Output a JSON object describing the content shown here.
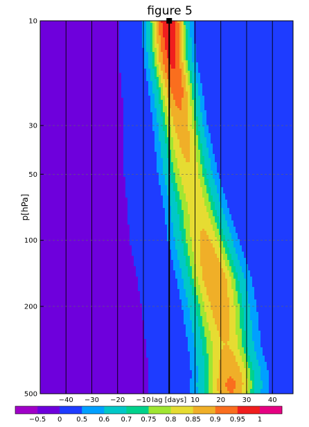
{
  "chart_data": {
    "type": "heatmap",
    "title": "figure 5",
    "xlabel": "lag [days]",
    "ylabel": "p[hPa]",
    "xlim": [
      -50,
      48
    ],
    "ylim": [
      10,
      500
    ],
    "y_scale": "log",
    "x_ticks": [
      {
        "value": -40,
        "label": "−40"
      },
      {
        "value": -30,
        "label": "−30"
      },
      {
        "value": -20,
        "label": "−20"
      },
      {
        "value": -10,
        "label": "−10"
      },
      {
        "value": 10,
        "label": "10"
      },
      {
        "value": 20,
        "label": "20"
      },
      {
        "value": 30,
        "label": "30"
      },
      {
        "value": 40,
        "label": "40"
      }
    ],
    "x_gridlines": [
      -40,
      -30,
      -20,
      -10,
      0,
      10,
      20,
      30,
      40
    ],
    "y_ticks": [
      {
        "value": 10,
        "label": "10"
      },
      {
        "value": 30,
        "label": "30"
      },
      {
        "value": 50,
        "label": "50"
      },
      {
        "value": 100,
        "label": "100"
      },
      {
        "value": 200,
        "label": "200"
      },
      {
        "value": 500,
        "label": "500"
      }
    ],
    "y_gridlines": [
      30,
      50,
      100,
      200
    ],
    "marker": {
      "x": 0,
      "y": 10
    },
    "colorbar": {
      "levels": [
        "−0.5",
        "0",
        "0.5",
        "0.6",
        "0.7",
        "0.75",
        "0.8",
        "0.85",
        "0.9",
        "0.95",
        "1"
      ],
      "colors": [
        "#a000c8",
        "#6e00dc",
        "#1e3cff",
        "#00a0ff",
        "#00c8c8",
        "#00d28c",
        "#a0e632",
        "#e6dc32",
        "#f0af28",
        "#fa6e1e",
        "#f01e1e",
        "#e60082"
      ]
    },
    "max_ridge": [
      {
        "p": 10,
        "lag": 0
      },
      {
        "p": 15,
        "lag": 1
      },
      {
        "p": 20,
        "lag": 3
      },
      {
        "p": 30,
        "lag": 5
      },
      {
        "p": 50,
        "lag": 8
      },
      {
        "p": 70,
        "lag": 11
      },
      {
        "p": 100,
        "lag": 14
      },
      {
        "p": 150,
        "lag": 18
      },
      {
        "p": 200,
        "lag": 20
      },
      {
        "p": 300,
        "lag": 22
      },
      {
        "p": 400,
        "lag": 24
      },
      {
        "p": 500,
        "lag": 24
      }
    ],
    "ridge_width": [
      {
        "p": 10,
        "width": 6
      },
      {
        "p": 30,
        "width": 7
      },
      {
        "p": 50,
        "width": 8
      },
      {
        "p": 100,
        "width": 9
      },
      {
        "p": 200,
        "width": 9
      },
      {
        "p": 500,
        "width": 9
      }
    ],
    "peak_values": [
      {
        "p": 10,
        "value": 1.0
      },
      {
        "p": 15,
        "value": 0.96
      },
      {
        "p": 20,
        "value": 0.93
      },
      {
        "p": 30,
        "value": 0.88
      },
      {
        "p": 50,
        "value": 0.84
      },
      {
        "p": 70,
        "value": 0.83
      },
      {
        "p": 100,
        "value": 0.86
      },
      {
        "p": 150,
        "value": 0.9
      },
      {
        "p": 200,
        "value": 0.88
      },
      {
        "p": 300,
        "value": 0.85
      },
      {
        "p": 450,
        "value": 0.91
      },
      {
        "p": 500,
        "value": 0.9
      }
    ],
    "background_left": -0.3,
    "background_right": 0.2
  }
}
